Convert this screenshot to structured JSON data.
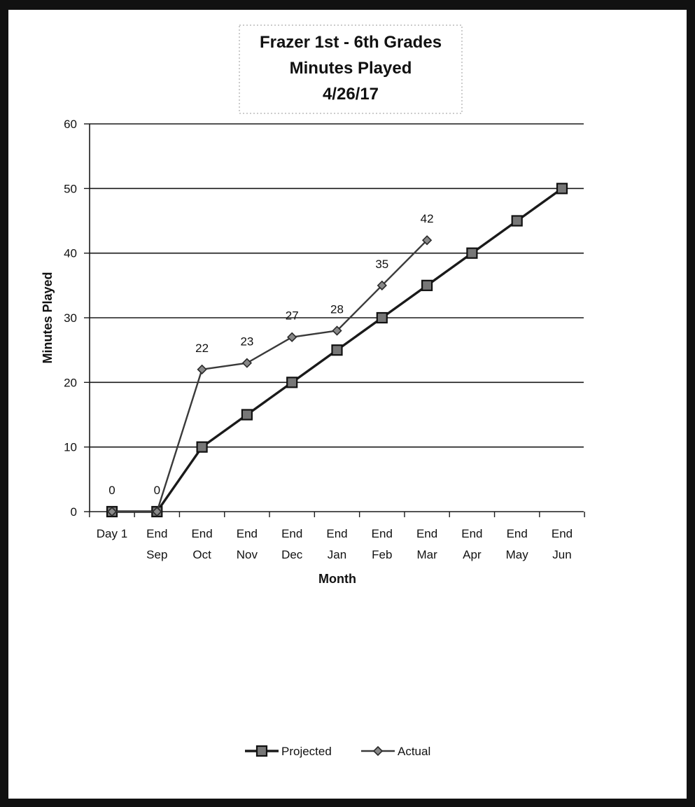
{
  "chart_data": {
    "type": "line",
    "title_lines": [
      "Frazer 1st - 6th Grades",
      "Minutes Played",
      "4/26/17"
    ],
    "xlabel": "Month",
    "ylabel": "Minutes Played",
    "categories": [
      [
        "Day 1"
      ],
      [
        "End",
        "Sep"
      ],
      [
        "End",
        "Oct"
      ],
      [
        "End",
        "Nov"
      ],
      [
        "End",
        "Dec"
      ],
      [
        "End",
        "Jan"
      ],
      [
        "End",
        "Feb"
      ],
      [
        "End",
        "Mar"
      ],
      [
        "End",
        "Apr"
      ],
      [
        "End",
        "May"
      ],
      [
        "End",
        "Jun"
      ]
    ],
    "ylim": [
      0,
      60
    ],
    "yticks": [
      0,
      10,
      20,
      30,
      40,
      50,
      60
    ],
    "grid": true,
    "legend_position": "bottom",
    "series": [
      {
        "name": "Projected",
        "marker": "square",
        "color": "#1a1a1a",
        "values": [
          0,
          0,
          10,
          15,
          20,
          25,
          30,
          35,
          40,
          45,
          50
        ],
        "data_labels": [
          null,
          null,
          null,
          null,
          null,
          null,
          null,
          null,
          null,
          null,
          null
        ]
      },
      {
        "name": "Actual",
        "marker": "diamond",
        "color": "#3a3a3a",
        "values": [
          0,
          0,
          22,
          23,
          27,
          28,
          35,
          42,
          null,
          null,
          null
        ],
        "data_labels": [
          "0",
          "0",
          "22",
          "23",
          "27",
          "28",
          "35",
          "42",
          null,
          null,
          null
        ]
      }
    ]
  }
}
